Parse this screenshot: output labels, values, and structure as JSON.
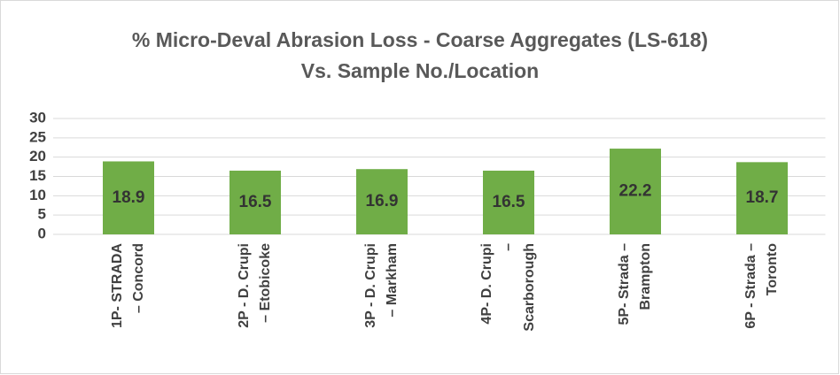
{
  "chart_data": {
    "type": "bar",
    "title": [
      "% Micro-Deval Abrasion Loss - Coarse Aggregates (LS-618)",
      "Vs. Sample No./Location"
    ],
    "categories": [
      [
        "1P- STRADA",
        "– Concord"
      ],
      [
        "2P -  D. Crupi",
        "– Etobicoke"
      ],
      [
        "3P -  D. Crupi",
        "– Markham"
      ],
      [
        "4P-  D. Crupi",
        "–",
        "Scarborough"
      ],
      [
        "5P- Strada –",
        "Brampton"
      ],
      [
        "6P - Strada –",
        "Toronto"
      ]
    ],
    "values": [
      18.9,
      16.5,
      16.9,
      16.5,
      22.2,
      18.7
    ],
    "color": "#70ad47",
    "ylim": [
      0,
      30
    ],
    "yticks": [
      0,
      5,
      10,
      15,
      20,
      25,
      30
    ],
    "grid": true
  }
}
